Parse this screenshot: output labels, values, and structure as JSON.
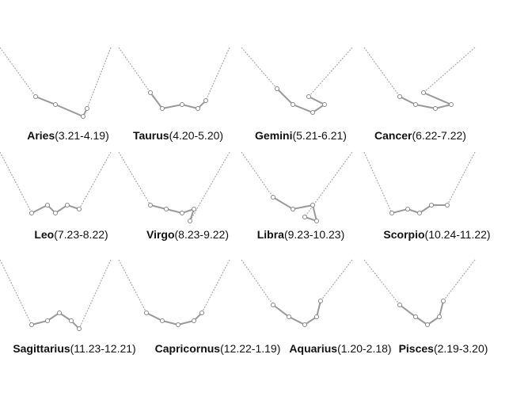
{
  "items": [
    {
      "name": "Aries",
      "dates": "(3.21-4.19)"
    },
    {
      "name": "Taurus",
      "dates": "(4.20-5.20)"
    },
    {
      "name": "Gemini",
      "dates": "(5.21-6.21)"
    },
    {
      "name": "Cancer",
      "dates": "(6.22-7.22)"
    },
    {
      "name": "Leo",
      "dates": "(7.23-8.22)"
    },
    {
      "name": "Virgo",
      "dates": "(8.23-9.22)"
    },
    {
      "name": "Libra",
      "dates": "(9.23-10.23)"
    },
    {
      "name": "Scorpio",
      "dates": "(10.24-11.22)"
    },
    {
      "name": "Sagittarius",
      "dates": "(11.23-12.21)"
    },
    {
      "name": "Capricornus",
      "dates": "(12.22-1.19)"
    },
    {
      "name": "Aquarius",
      "dates": "(1.20-2.18)"
    },
    {
      "name": "Pisces",
      "dates": "(2.19-3.20)"
    }
  ]
}
